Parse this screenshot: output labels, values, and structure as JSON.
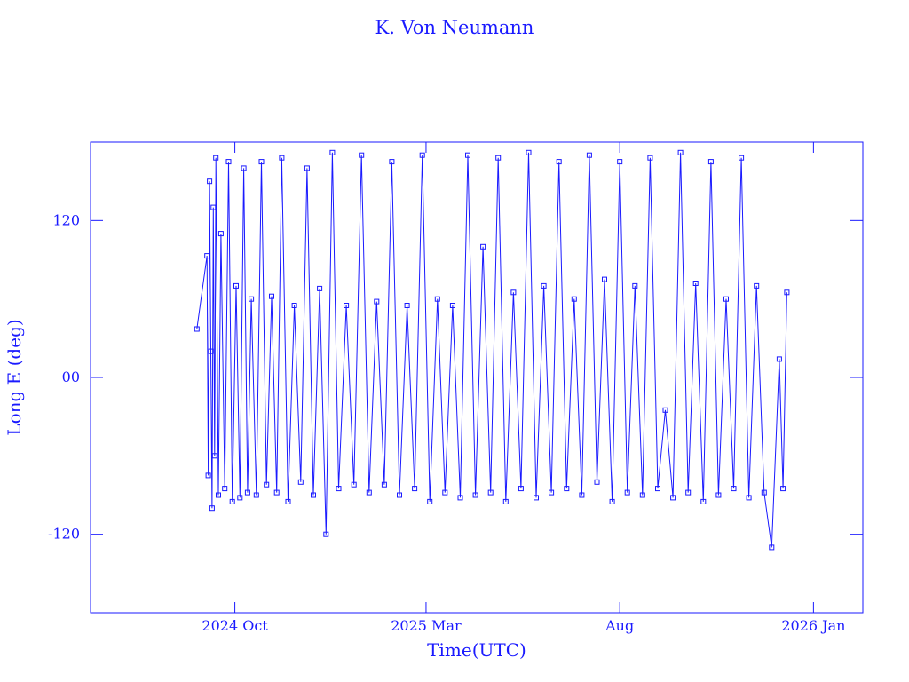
{
  "chart_data": {
    "type": "line",
    "title": "K. Von Neumann",
    "xlabel": "Time(UTC)",
    "ylabel": "Long E (deg)",
    "ylim": [
      -180,
      180
    ],
    "xlim": [
      "2024-06-09",
      "2026-02-09"
    ],
    "grid": false,
    "color": "#1a1aff",
    "x_ticks": [
      {
        "date": "2024-10-01",
        "label": "2024 Oct"
      },
      {
        "date": "2025-03-01",
        "label": "2025 Mar"
      },
      {
        "date": "2025-08-01",
        "label": "Aug"
      },
      {
        "date": "2026-01-01",
        "label": "2026 Jan"
      }
    ],
    "y_ticks": [
      {
        "value": 120,
        "label": "120"
      },
      {
        "value": 0,
        "label": "00"
      },
      {
        "value": -120,
        "label": "-120"
      }
    ],
    "series": [
      {
        "x": [
          "2024-09-01",
          "2024-09-09",
          "2024-09-10",
          "2024-09-11",
          "2024-09-12",
          "2024-09-13",
          "2024-09-14",
          "2024-09-15",
          "2024-09-16",
          "2024-09-18",
          "2024-09-20",
          "2024-09-23",
          "2024-09-26",
          "2024-09-29",
          "2024-10-02",
          "2024-10-05",
          "2024-10-08",
          "2024-10-11",
          "2024-10-14",
          "2024-10-18",
          "2024-10-22",
          "2024-10-26",
          "2024-10-30",
          "2024-11-03",
          "2024-11-07",
          "2024-11-12",
          "2024-11-17",
          "2024-11-22",
          "2024-11-27",
          "2024-12-02",
          "2024-12-07",
          "2024-12-12",
          "2024-12-17",
          "2024-12-22",
          "2024-12-28",
          "2025-01-03",
          "2025-01-09",
          "2025-01-15",
          "2025-01-21",
          "2025-01-27",
          "2025-02-02",
          "2025-02-08",
          "2025-02-14",
          "2025-02-20",
          "2025-02-26",
          "2025-03-04",
          "2025-03-10",
          "2025-03-16",
          "2025-03-22",
          "2025-03-28",
          "2025-04-03",
          "2025-04-09",
          "2025-04-15",
          "2025-04-21",
          "2025-04-27",
          "2025-05-03",
          "2025-05-09",
          "2025-05-15",
          "2025-05-21",
          "2025-05-27",
          "2025-06-02",
          "2025-06-08",
          "2025-06-14",
          "2025-06-20",
          "2025-06-26",
          "2025-07-02",
          "2025-07-08",
          "2025-07-14",
          "2025-07-20",
          "2025-07-26",
          "2025-08-01",
          "2025-08-07",
          "2025-08-13",
          "2025-08-19",
          "2025-08-25",
          "2025-08-31",
          "2025-09-06",
          "2025-09-12",
          "2025-09-18",
          "2025-09-24",
          "2025-09-30",
          "2025-10-06",
          "2025-10-12",
          "2025-10-18",
          "2025-10-24",
          "2025-10-30",
          "2025-11-05",
          "2025-11-11",
          "2025-11-17",
          "2025-11-23",
          "2025-11-29",
          "2025-12-05",
          "2025-12-08",
          "2025-12-11"
        ],
        "values": [
          37,
          93,
          -75,
          150,
          20,
          -100,
          130,
          -60,
          168,
          -90,
          110,
          -85,
          165,
          -95,
          70,
          -92,
          160,
          -88,
          60,
          -90,
          165,
          -82,
          62,
          -88,
          168,
          -95,
          55,
          -80,
          160,
          -90,
          68,
          -120,
          172,
          -85,
          55,
          -82,
          170,
          -88,
          58,
          -82,
          165,
          -90,
          55,
          -85,
          170,
          -95,
          60,
          -88,
          55,
          -92,
          170,
          -90,
          100,
          -88,
          168,
          -95,
          65,
          -85,
          172,
          -92,
          70,
          -88,
          165,
          -85,
          60,
          -90,
          170,
          -80,
          75,
          -95,
          165,
          -88,
          70,
          -90,
          168,
          -85,
          -25,
          -92,
          172,
          -88,
          72,
          -95,
          165,
          -90,
          60,
          -85,
          168,
          -92,
          70,
          -88,
          -130,
          14,
          -85,
          65
        ]
      }
    ]
  }
}
